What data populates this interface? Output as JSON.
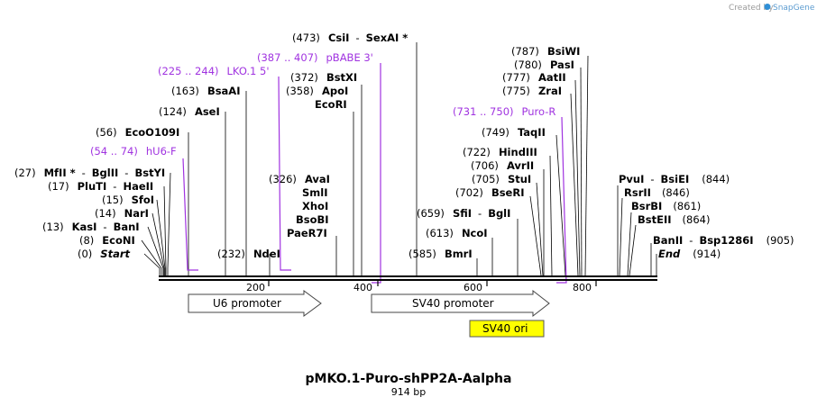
{
  "credit": {
    "prefix": "Created by",
    "brand": "SnapGene"
  },
  "plasmid": {
    "name": "pMKO.1-Puro-shPP2A-Aalpha",
    "size_label": "914 bp",
    "length": 914
  },
  "ticks": [
    "200",
    "400",
    "600",
    "800"
  ],
  "sites": [
    {
      "pos": "(0)",
      "name": "Start",
      "italic": true,
      "line": 0
    },
    {
      "pos": "(8)",
      "name": "EcoNI",
      "line": 8
    },
    {
      "pos": "(13)",
      "name": "KasI",
      "name2": "BanI",
      "line": 13
    },
    {
      "pos": "(14)",
      "name": "NarI",
      "line": 14
    },
    {
      "pos": "(15)",
      "name": "SfoI",
      "line": 15
    },
    {
      "pos": "(17)",
      "name": "PluTI",
      "name2": "HaeII",
      "line": 17
    },
    {
      "pos": "(27)",
      "name": "MfII *",
      "name2": "BglII",
      "name3": "BstYI",
      "line": 27
    },
    {
      "pos": "(54 .. 74)",
      "name": "hU6-F",
      "primer": true
    },
    {
      "pos": "(56)",
      "name": "EcoO109I",
      "line": 56
    },
    {
      "pos": "(124)",
      "name": "AseI",
      "line": 124
    },
    {
      "pos": "(163)",
      "name": "BsaAI",
      "line": 163
    },
    {
      "pos": "(225 .. 244)",
      "name": "LKO.1 5'",
      "primer": true
    },
    {
      "pos": "(232)",
      "name": "NdeI",
      "line": 232
    },
    {
      "pos": "(326)",
      "name": "AvaI",
      "group": [
        "SmlI",
        "XhoI",
        "BsoBI",
        "PaeR7I"
      ],
      "line": 326
    },
    {
      "pos": "(358)",
      "name": "ApoI",
      "name_b": "EcoRI",
      "line": 358
    },
    {
      "pos": "(372)",
      "name": "BstXI",
      "line": 372
    },
    {
      "pos": "(387 .. 407)",
      "name": "pBABE 3'",
      "primer": true
    },
    {
      "pos": "(473)",
      "name": "CsiI",
      "name2": "SexAI *",
      "line": 473
    },
    {
      "pos": "(585)",
      "name": "BmrI",
      "line": 585
    },
    {
      "pos": "(613)",
      "name": "NcoI",
      "line": 613
    },
    {
      "pos": "(659)",
      "name": "SfiI",
      "name2": "BglI",
      "line": 659
    },
    {
      "pos": "(702)",
      "name": "BseRI",
      "line": 702
    },
    {
      "pos": "(705)",
      "name": "StuI",
      "line": 705
    },
    {
      "pos": "(706)",
      "name": "AvrII",
      "line": 706
    },
    {
      "pos": "(722)",
      "name": "HindIII",
      "line": 722
    },
    {
      "pos": "(731 .. 750)",
      "name": "Puro-R",
      "primer": true
    },
    {
      "pos": "(749)",
      "name": "TaqII",
      "line": 749
    },
    {
      "pos": "(775)",
      "name": "ZraI",
      "line": 775
    },
    {
      "pos": "(777)",
      "name": "AatII",
      "line": 777
    },
    {
      "pos": "(780)",
      "name": "PasI",
      "line": 780
    },
    {
      "pos": "(787)",
      "name": "BsiWI",
      "line": 787
    },
    {
      "pos": "(844)",
      "name": "PvuI",
      "name2": "BsiEI",
      "line": 844
    },
    {
      "pos": "(846)",
      "name": "RsrII",
      "line": 846
    },
    {
      "pos": "(861)",
      "name": "BsrBI",
      "line": 861
    },
    {
      "pos": "(864)",
      "name": "BstEII",
      "line": 864
    },
    {
      "pos": "(905)",
      "name": "BanII",
      "name2": "Bsp1286I",
      "line": 905
    },
    {
      "pos": "(914)",
      "name": "End",
      "italic": true,
      "line": 914
    }
  ],
  "features": [
    {
      "label": "U6 promoter",
      "kind": "arrow"
    },
    {
      "label": "SV40 promoter",
      "kind": "arrow"
    },
    {
      "label": "SV40 ori",
      "kind": "box",
      "color": "#ffff00"
    }
  ],
  "colors": {
    "primer": "#a033e0",
    "backbone": "#000000",
    "brand": "#2f8fd6"
  }
}
